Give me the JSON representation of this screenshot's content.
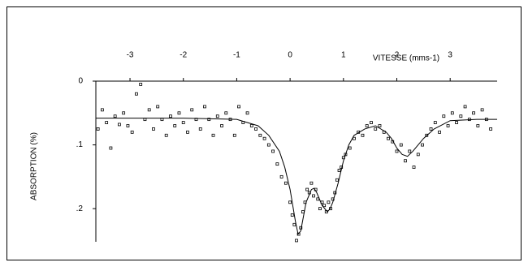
{
  "chart_data": {
    "type": "scatter",
    "x_label": "VITESSE (mms-1)",
    "y_label": "ABSORPTION (%)",
    "xlim": [
      -3.64,
      3.88
    ],
    "xticks": [
      -3,
      -2,
      -1,
      0,
      1,
      2,
      3
    ],
    "ylim": [
      0.252,
      0
    ],
    "yticks": [
      {
        "value": 0,
        "label": "0"
      },
      {
        "value": 0.1,
        "label": ".1"
      },
      {
        "value": 0.2,
        "label": ".2"
      }
    ],
    "series": [
      {
        "color": "#000000",
        "marker": "square",
        "x": [
          -3.6,
          -3.52,
          -3.44,
          -3.36,
          -3.28,
          -3.2,
          -3.12,
          -3.04,
          -2.96,
          -2.88,
          -2.8,
          -2.72,
          -2.64,
          -2.56,
          -2.48,
          -2.4,
          -2.32,
          -2.24,
          -2.16,
          -2.08,
          -2.0,
          -1.92,
          -1.84,
          -1.76,
          -1.68,
          -1.6,
          -1.52,
          -1.44,
          -1.36,
          -1.28,
          -1.2,
          -1.12,
          -1.04,
          -0.96,
          -0.88,
          -0.8,
          -0.72,
          -0.64,
          -0.56,
          -0.48,
          -0.4,
          -0.32,
          -0.24,
          -0.16,
          -0.08,
          0,
          0.04,
          0.08,
          0.12,
          0.16,
          0.2,
          0.24,
          0.28,
          0.32,
          0.36,
          0.4,
          0.44,
          0.48,
          0.52,
          0.56,
          0.6,
          0.64,
          0.68,
          0.72,
          0.76,
          0.8,
          0.84,
          0.88,
          0.92,
          0.96,
          1.0,
          1.04,
          1.12,
          1.2,
          1.28,
          1.36,
          1.44,
          1.52,
          1.6,
          1.68,
          1.76,
          1.84,
          1.92,
          2.0,
          2.08,
          2.16,
          2.24,
          2.32,
          2.4,
          2.48,
          2.56,
          2.64,
          2.72,
          2.8,
          2.88,
          2.96,
          3.04,
          3.12,
          3.2,
          3.28,
          3.36,
          3.44,
          3.52,
          3.6,
          3.68,
          3.76
        ],
        "values": [
          0.075,
          0.045,
          0.065,
          0.105,
          0.055,
          0.068,
          0.05,
          0.07,
          0.08,
          0.02,
          0.005,
          0.06,
          0.045,
          0.075,
          0.04,
          0.06,
          0.085,
          0.055,
          0.07,
          0.05,
          0.065,
          0.08,
          0.045,
          0.06,
          0.075,
          0.04,
          0.06,
          0.085,
          0.055,
          0.07,
          0.05,
          0.06,
          0.085,
          0.04,
          0.065,
          0.05,
          0.07,
          0.075,
          0.085,
          0.09,
          0.1,
          0.11,
          0.13,
          0.15,
          0.16,
          0.19,
          0.21,
          0.225,
          0.25,
          0.24,
          0.23,
          0.205,
          0.19,
          0.17,
          0.175,
          0.16,
          0.18,
          0.17,
          0.185,
          0.2,
          0.19,
          0.195,
          0.205,
          0.19,
          0.2,
          0.185,
          0.175,
          0.155,
          0.14,
          0.135,
          0.12,
          0.115,
          0.105,
          0.09,
          0.08,
          0.085,
          0.07,
          0.065,
          0.075,
          0.07,
          0.08,
          0.09,
          0.095,
          0.11,
          0.1,
          0.125,
          0.11,
          0.135,
          0.115,
          0.1,
          0.085,
          0.075,
          0.065,
          0.08,
          0.055,
          0.07,
          0.05,
          0.065,
          0.055,
          0.04,
          0.06,
          0.05,
          0.07,
          0.045,
          0.06,
          0.075
        ]
      },
      {
        "color": "#000000",
        "marker": "line",
        "x": [
          -3.64,
          -3,
          -2,
          -1,
          -0.6,
          -0.4,
          -0.2,
          -0.1,
          0,
          0.05,
          0.1,
          0.15,
          0.2,
          0.3,
          0.4,
          0.45,
          0.5,
          0.6,
          0.7,
          0.75,
          0.8,
          0.9,
          1.0,
          1.1,
          1.2,
          1.4,
          1.6,
          1.8,
          1.9,
          2.0,
          2.1,
          2.2,
          2.3,
          2.4,
          2.5,
          2.7,
          3,
          3.5,
          3.88
        ],
        "values": [
          0.058,
          0.058,
          0.058,
          0.06,
          0.07,
          0.085,
          0.11,
          0.135,
          0.17,
          0.195,
          0.22,
          0.24,
          0.235,
          0.19,
          0.17,
          0.168,
          0.175,
          0.195,
          0.205,
          0.2,
          0.19,
          0.16,
          0.125,
          0.1,
          0.085,
          0.075,
          0.07,
          0.08,
          0.09,
          0.105,
          0.115,
          0.118,
          0.11,
          0.1,
          0.09,
          0.075,
          0.062,
          0.06,
          0.06
        ]
      }
    ]
  }
}
